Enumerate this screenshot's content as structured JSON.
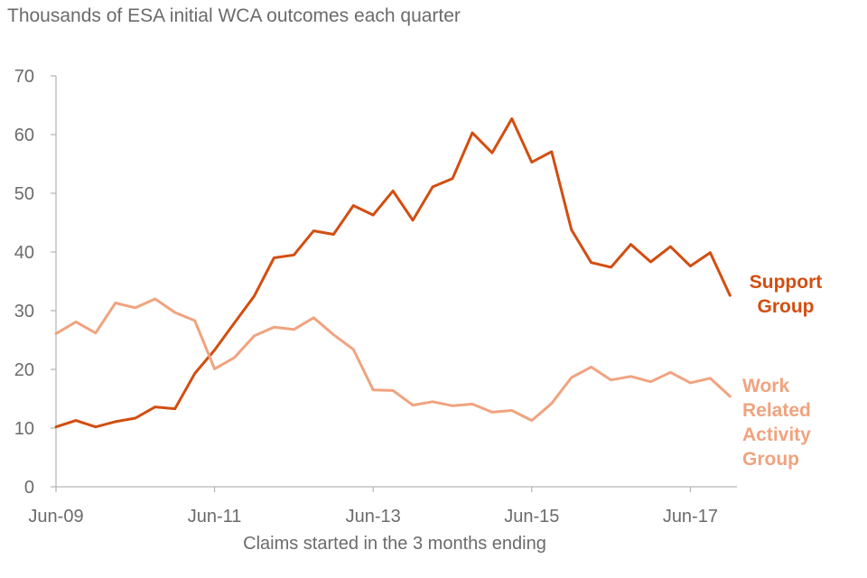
{
  "chart_data": {
    "type": "line",
    "title": "Thousands of ESA initial WCA outcomes each quarter",
    "xlabel": "Claims started in the 3 months ending",
    "ylabel": "",
    "ylim": [
      0,
      70
    ],
    "yticks": [
      0,
      10,
      20,
      30,
      40,
      50,
      60,
      70
    ],
    "x_tick_labels": [
      {
        "index": 0,
        "label": "Jun-09"
      },
      {
        "index": 8,
        "label": "Jun-11"
      },
      {
        "index": 16,
        "label": "Jun-13"
      },
      {
        "index": 24,
        "label": "Jun-15"
      },
      {
        "index": 32,
        "label": "Jun-17"
      }
    ],
    "x_count": 35,
    "grid": false,
    "series": [
      {
        "name": "Support Group",
        "label_lines": [
          "Support",
          "Group"
        ],
        "color": "#d24e10",
        "values": [
          10.2,
          11.3,
          10.2,
          11.1,
          11.7,
          13.6,
          13.3,
          19.3,
          23.3,
          27.9,
          32.5,
          39.0,
          39.5,
          43.6,
          43.0,
          47.9,
          46.3,
          50.4,
          45.4,
          51.1,
          52.5,
          60.3,
          56.9,
          62.7,
          55.3,
          57.1,
          43.8,
          38.2,
          37.4,
          41.3,
          38.3,
          40.9,
          37.6,
          39.9,
          32.6
        ]
      },
      {
        "name": "Work Related Activity Group",
        "label_lines": [
          "Work",
          "Related",
          "Activity",
          "Group"
        ],
        "color": "#f0a37f",
        "values": [
          26.1,
          28.1,
          26.2,
          31.3,
          30.5,
          32.0,
          29.7,
          28.3,
          20.1,
          22.0,
          25.7,
          27.2,
          26.8,
          28.8,
          25.9,
          23.4,
          16.5,
          16.4,
          13.9,
          14.5,
          13.8,
          14.1,
          12.7,
          13.0,
          11.3,
          14.2,
          18.6,
          20.4,
          18.2,
          18.8,
          17.9,
          19.5,
          17.7,
          18.5,
          15.4
        ]
      }
    ]
  }
}
